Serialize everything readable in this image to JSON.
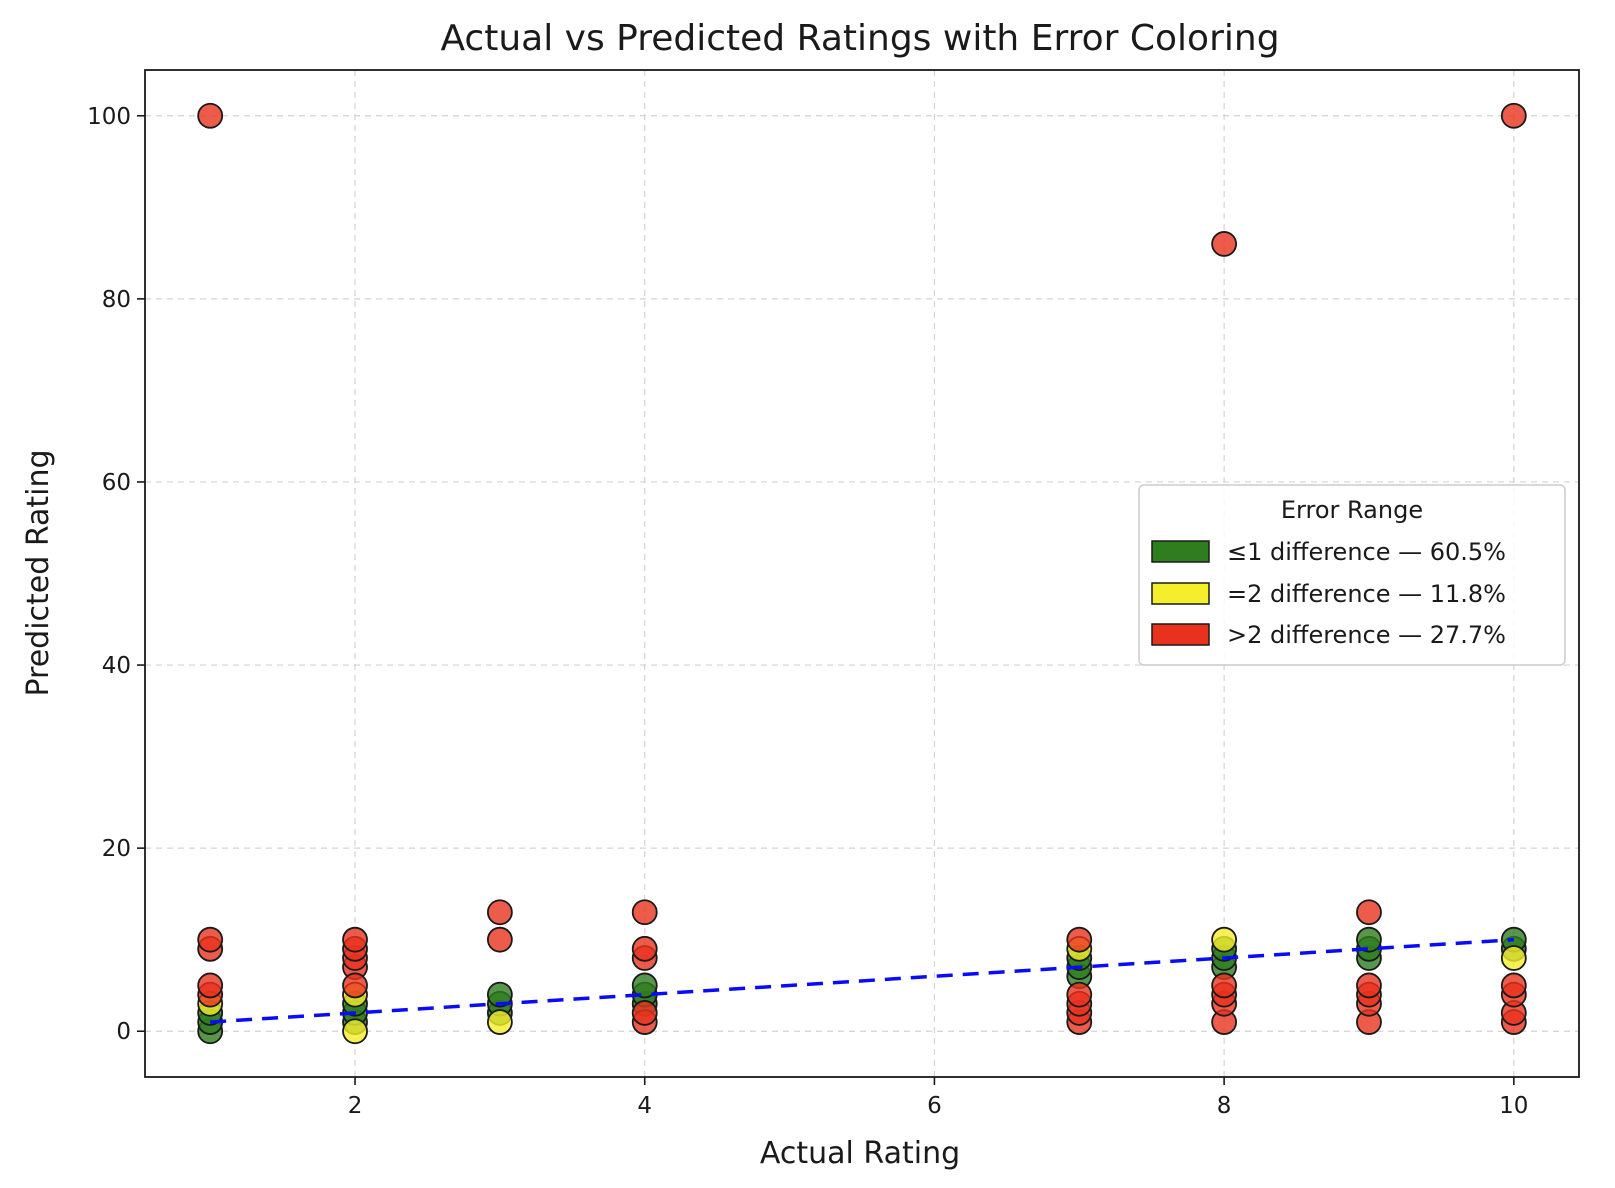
{
  "chart_data": {
    "type": "scatter",
    "title": "Actual vs Predicted Ratings with Error Coloring",
    "xlabel": "Actual Rating",
    "ylabel": "Predicted Rating",
    "xlim": [
      0.55,
      10.45
    ],
    "ylim": [
      -5,
      105
    ],
    "xticks": [
      "2",
      "4",
      "6",
      "8",
      "10"
    ],
    "yticks": [
      "0",
      "20",
      "40",
      "60",
      "80",
      "100"
    ],
    "xtick_values": [
      2,
      4,
      6,
      8,
      10
    ],
    "ytick_values": [
      0,
      20,
      40,
      60,
      80,
      100
    ],
    "grid": true,
    "colors": {
      "green": "#2e7d1e",
      "yellow": "#f5ee2a",
      "red": "#e8321e",
      "reference_line": "#0a0aff"
    },
    "reference_line": {
      "x": [
        1,
        10
      ],
      "y": [
        1,
        10
      ],
      "style": "dashed"
    },
    "legend": {
      "title": "Error Range",
      "position": "center-right",
      "entries": [
        {
          "label": "≤1 difference — 60.5%",
          "color": "#2e7d1e"
        },
        {
          "label": "=2 difference — 11.8%",
          "color": "#f5ee2a"
        },
        {
          "label": ">2 difference — 27.7%",
          "color": "#e8321e"
        }
      ]
    },
    "series": [
      {
        "name": "≤1 difference — 60.5%",
        "color": "#2e7d1e",
        "points": [
          [
            1,
            0
          ],
          [
            1,
            1
          ],
          [
            1,
            2
          ],
          [
            2,
            1
          ],
          [
            2,
            2
          ],
          [
            2,
            3
          ],
          [
            3,
            2
          ],
          [
            3,
            3
          ],
          [
            3,
            4
          ],
          [
            4,
            3
          ],
          [
            4,
            4
          ],
          [
            4,
            5
          ],
          [
            7,
            6
          ],
          [
            7,
            7
          ],
          [
            7,
            8
          ],
          [
            8,
            7
          ],
          [
            8,
            8
          ],
          [
            8,
            9
          ],
          [
            9,
            8
          ],
          [
            9,
            9
          ],
          [
            9,
            10
          ],
          [
            10,
            9
          ],
          [
            10,
            10
          ]
        ]
      },
      {
        "name": "=2 difference — 11.8%",
        "color": "#f5ee2a",
        "points": [
          [
            1,
            3
          ],
          [
            2,
            0
          ],
          [
            2,
            4
          ],
          [
            3,
            1
          ],
          [
            7,
            9
          ],
          [
            8,
            10
          ],
          [
            10,
            8
          ]
        ]
      },
      {
        "name": ">2 difference — 27.7%",
        "color": "#e8321e",
        "points": [
          [
            1,
            100
          ],
          [
            1,
            9
          ],
          [
            1,
            10
          ],
          [
            1,
            4
          ],
          [
            1,
            5
          ],
          [
            2,
            7
          ],
          [
            2,
            8
          ],
          [
            2,
            9
          ],
          [
            2,
            10
          ],
          [
            2,
            5
          ],
          [
            3,
            10
          ],
          [
            3,
            13
          ],
          [
            4,
            1
          ],
          [
            4,
            2
          ],
          [
            4,
            8
          ],
          [
            4,
            9
          ],
          [
            4,
            13
          ],
          [
            7,
            1
          ],
          [
            7,
            2
          ],
          [
            7,
            3
          ],
          [
            7,
            4
          ],
          [
            7,
            10
          ],
          [
            8,
            86
          ],
          [
            8,
            1
          ],
          [
            8,
            3
          ],
          [
            8,
            4
          ],
          [
            8,
            5
          ],
          [
            9,
            1
          ],
          [
            9,
            3
          ],
          [
            9,
            4
          ],
          [
            9,
            5
          ],
          [
            9,
            13
          ],
          [
            10,
            100
          ],
          [
            10,
            1
          ],
          [
            10,
            2
          ],
          [
            10,
            4
          ],
          [
            10,
            5
          ]
        ]
      }
    ]
  }
}
